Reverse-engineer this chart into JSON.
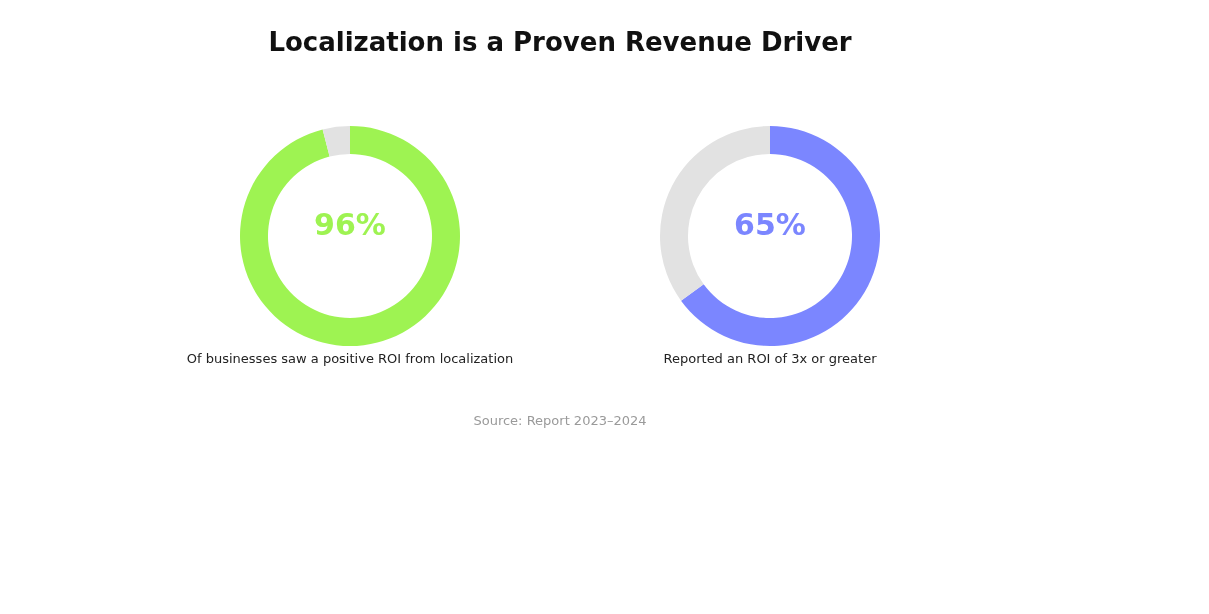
{
  "chart_data": [
    {
      "type": "donut",
      "title": "Localization is a Proven Revenue Driver",
      "categories": [
        null,
        null
      ],
      "values": [
        96,
        4
      ],
      "colors": [
        "#9ef352",
        "#e2e2e2"
      ],
      "value_labels": [
        "96%",
        null
      ],
      "annotations": [
        "Of businesses saw a positive ROI from localization"
      ]
    },
    {
      "type": "donut",
      "categories": [
        null,
        null
      ],
      "values": [
        65,
        35
      ],
      "colors": [
        "#7b86ff",
        "#e2e2e2"
      ],
      "value_labels": [
        "65%",
        null
      ],
      "annotations": [
        "Reported an ROI of 3x or greater",
        "Source: Report 2023–2024"
      ]
    }
  ]
}
